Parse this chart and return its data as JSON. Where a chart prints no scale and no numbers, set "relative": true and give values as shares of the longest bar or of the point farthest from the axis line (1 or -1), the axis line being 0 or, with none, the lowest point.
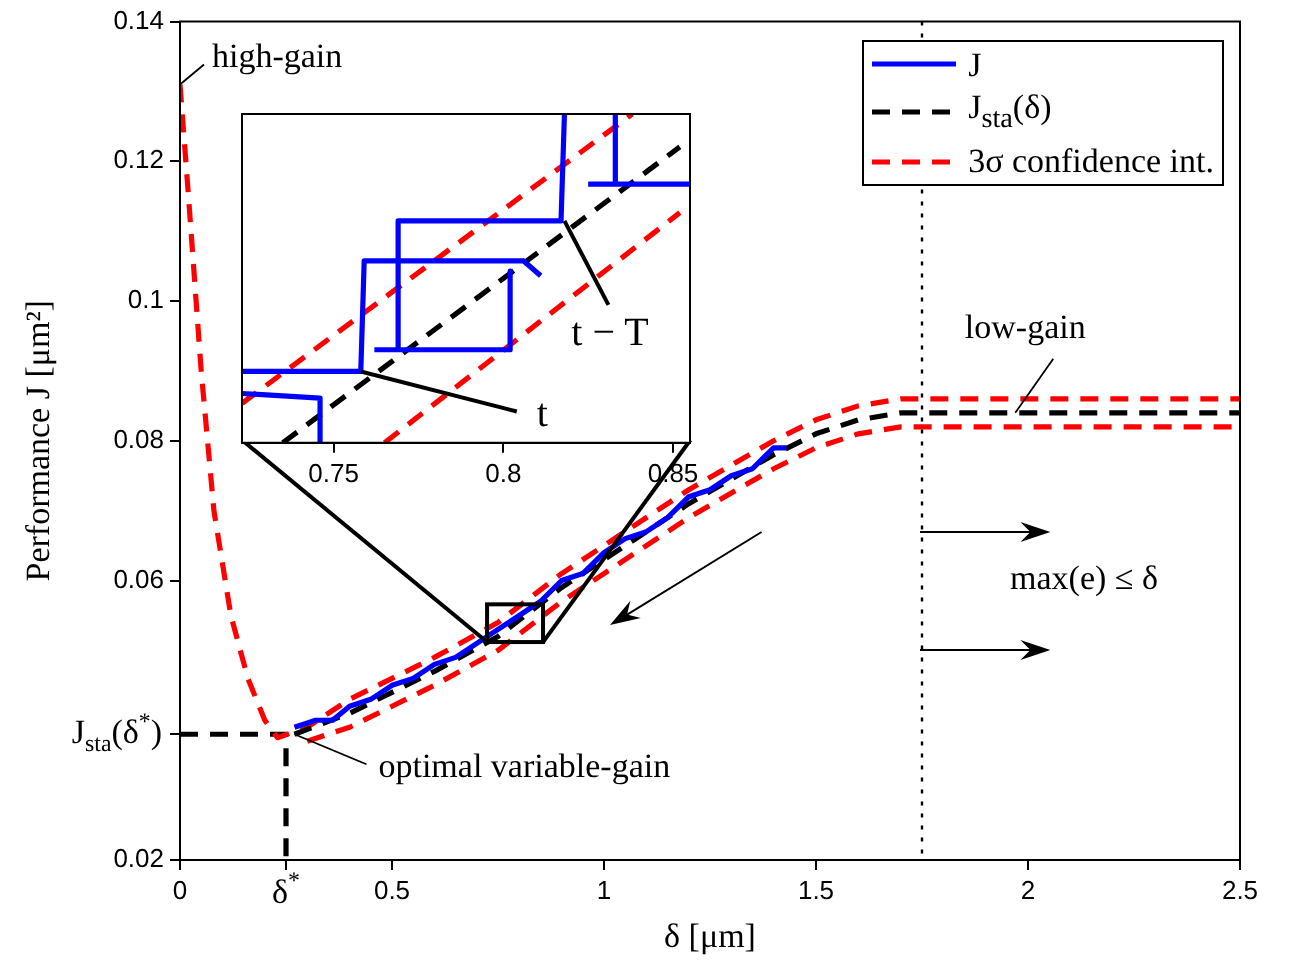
{
  "chart_data": [
    {
      "type": "line",
      "xlabel": "δ [μm]",
      "ylabel": "Performance J [μm²]",
      "xlim": [
        0,
        2.5
      ],
      "ylim": [
        0.02,
        0.14
      ],
      "xticks": [
        0,
        {
          "value": 0.25,
          "label": "δ$^{*}$"
        },
        0.5,
        1,
        1.5,
        2,
        2.5
      ],
      "yticks": [
        0.02,
        {
          "value": 0.038,
          "label": "J$_{sta}$(δ$^{*}$)"
        },
        0.06,
        0.08,
        0.1,
        0.12,
        0.14
      ],
      "legend": "top right",
      "marker": "none",
      "series": [
        {
          "name": "J",
          "color": "#0000ff",
          "line_style": "solid",
          "x": [
            0.27,
            0.32,
            0.36,
            0.4,
            0.45,
            0.5,
            0.55,
            0.6,
            0.65,
            0.7,
            0.75,
            0.8,
            0.85,
            0.9,
            0.95,
            1.0,
            1.05,
            1.1,
            1.15,
            1.2,
            1.25,
            1.3,
            1.35,
            1.4,
            1.43
          ],
          "values": [
            0.039,
            0.04,
            0.04,
            0.042,
            0.043,
            0.045,
            0.046,
            0.048,
            0.049,
            0.051,
            0.053,
            0.055,
            0.057,
            0.06,
            0.061,
            0.064,
            0.066,
            0.067,
            0.069,
            0.072,
            0.073,
            0.075,
            0.076,
            0.079,
            0.079
          ]
        },
        {
          "name": "J$_{sta}$(δ)",
          "color": "#000000",
          "line_style": "dashed",
          "x": [
            0.27,
            0.4,
            0.5,
            0.6,
            0.75,
            0.9,
            1,
            1.2,
            1.4,
            1.5,
            1.6,
            1.7,
            2.5
          ],
          "values": [
            0.038,
            0.041,
            0.044,
            0.047,
            0.052,
            0.059,
            0.063,
            0.071,
            0.078,
            0.081,
            0.083,
            0.084,
            0.084
          ]
        },
        {
          "name": "3σ confidence int.",
          "color": "#ff0000",
          "line_style": "dashed",
          "x": [
            0,
            0.02,
            0.05,
            0.08,
            0.12,
            0.16,
            0.2,
            0.23,
            0.3,
            0.4,
            0.5,
            0.6,
            0.75,
            0.9,
            1,
            1.2,
            1.4,
            1.5,
            1.6,
            1.7,
            2.5
          ],
          "values": [
            0.131,
            0.115,
            0.09,
            0.07,
            0.055,
            0.046,
            0.04,
            0.0375,
            0.039,
            0.043,
            0.046,
            0.049,
            0.054,
            0.061,
            0.065,
            0.073,
            0.08,
            0.083,
            0.085,
            0.086,
            0.086
          ]
        },
        {
          "color": "#ff0000",
          "line_style": "dashed",
          "x": [
            0.3,
            0.4,
            0.5,
            0.6,
            0.75,
            0.9,
            1,
            1.2,
            1.4,
            1.5,
            1.6,
            1.7,
            2.5
          ],
          "values": [
            0.037,
            0.039,
            0.042,
            0.045,
            0.05,
            0.057,
            0.061,
            0.069,
            0.076,
            0.079,
            0.081,
            0.082,
            0.082
          ]
        },
        {
          "color": "#000000",
          "line_style": "dashed",
          "x": [
            0,
            0.25,
            0.25
          ],
          "values": [
            0.038,
            0.038,
            0.02
          ]
        }
      ],
      "ref_lines": [
        {
          "axis": "x",
          "value": 1.75,
          "color": "#000000",
          "line_style": "dotted"
        }
      ],
      "annotations": [
        {
          "text": "high-gain",
          "x": 0,
          "y": 0.131
        },
        {
          "text": "low-gain",
          "x": 1.97,
          "y": 0.084
        },
        {
          "text": "optimal variable-gain",
          "x": 0.27,
          "y": 0.038
        },
        {
          "text": "max(e) ≤ δ",
          "x": 1.75,
          "y": 0.067
        }
      ]
    },
    {
      "type": "line",
      "relative": true,
      "xlim": [
        0.723,
        0.855
      ],
      "xticks": [
        0.75,
        0.8,
        0.85
      ],
      "marker": "none",
      "series": [
        {
          "color": "#0000ff",
          "line_style": "solid",
          "x": [
            0.723,
            0.746,
            0.746
          ],
          "values": [
            0.15,
            0.136,
            0
          ]
        },
        {
          "color": "#0000ff",
          "line_style": "solid",
          "x": [
            0.723,
            0.758,
            0.759,
            0.806,
            0.811
          ],
          "values": [
            0.217,
            0.217,
            0.553,
            0.553,
            0.508
          ]
        },
        {
          "color": "#0000ff",
          "line_style": "solid",
          "x": [
            0.802,
            0.802,
            0.762
          ],
          "values": [
            0.522,
            0.283,
            0.283
          ]
        },
        {
          "color": "#0000ff",
          "line_style": "solid",
          "x": [
            0.769,
            0.769,
            0.817,
            0.818
          ],
          "values": [
            0.283,
            0.675,
            0.675,
            1
          ]
        },
        {
          "color": "#0000ff",
          "line_style": "solid",
          "x": [
            0.825,
            0.855
          ],
          "values": [
            0.787,
            0.787
          ]
        },
        {
          "color": "#0000ff",
          "line_style": "solid",
          "x": [
            0.833,
            0.833
          ],
          "values": [
            0.787,
            1
          ]
        },
        {
          "color": "#000000",
          "line_style": "dashed",
          "x": [
            0.735,
            0.852
          ],
          "values": [
            0,
            0.9
          ]
        },
        {
          "color": "#ff0000",
          "line_style": "dashed",
          "x": [
            0.723,
            0.838
          ],
          "values": [
            0.12,
            1
          ]
        },
        {
          "color": "#ff0000",
          "line_style": "dashed",
          "x": [
            0.765,
            0.852
          ],
          "values": [
            0,
            0.7
          ]
        }
      ],
      "annotations": [
        {
          "text": "t",
          "x": 0.758,
          "y": 0.217
        },
        {
          "text": "t − T",
          "x": 0.818,
          "y": 0.675
        }
      ]
    }
  ]
}
